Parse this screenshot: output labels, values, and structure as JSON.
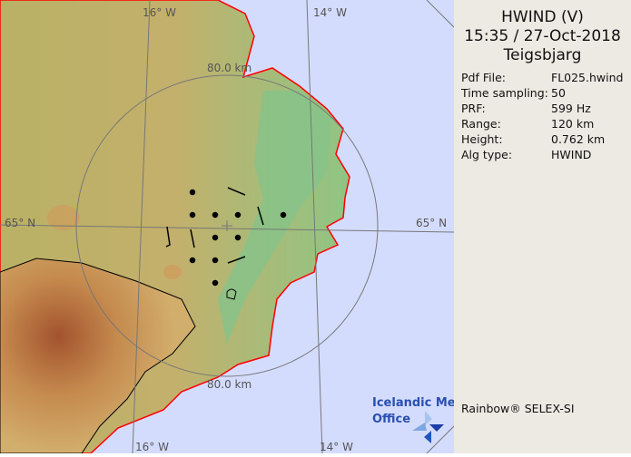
{
  "header": {
    "product": "HWIND (V)",
    "datetime": "15:35 / 27-Oct-2018",
    "site": "Teigsbjarg"
  },
  "info": [
    {
      "label": "Pdf File:",
      "value": "FL025.hwind"
    },
    {
      "label": "Time sampling:",
      "value": "50"
    },
    {
      "label": "PRF:",
      "value": "599 Hz"
    },
    {
      "label": "Range:",
      "value": "120 km"
    },
    {
      "label": "Height:",
      "value": "0.762 km"
    },
    {
      "label": "Alg type:",
      "value": "HWIND"
    }
  ],
  "footer": {
    "software": "Rainbow® SELEX-SI"
  },
  "map": {
    "lon_labels": [
      "16° W",
      "14° W"
    ],
    "lat_label": "65° N",
    "range_ring_label": "80.0 km",
    "logo_text": [
      "Icelandic Met",
      "Office"
    ],
    "colors": {
      "ocean": "#d4dcfe",
      "coast": "#ff0000",
      "lowland": "#7fc08a",
      "highland": "#c9a867"
    }
  }
}
